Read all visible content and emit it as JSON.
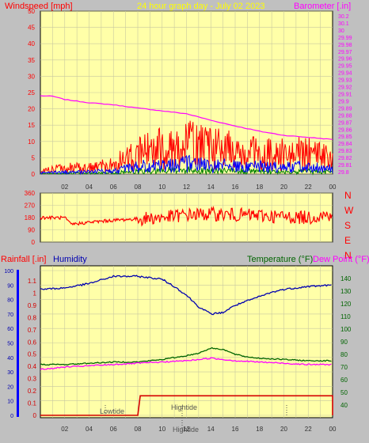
{
  "header": {
    "wind_label": "Windspeed [mph]",
    "title": "24 hour graph day - July 02 2023",
    "baro_label": "Barometer [.in]"
  },
  "colors": {
    "background": "#c0c0c0",
    "plot": "#ffffa8",
    "wind": "#ff0000",
    "gust_band": "#0000ff",
    "wind_green": "#008000",
    "barometer": "#ff00ff",
    "title": "#ffff00",
    "humidity": "#0000b0",
    "temperature": "#006400",
    "dewpoint": "#ff00ff",
    "rain": "#d40000"
  },
  "compass": [
    "N",
    "W",
    "S",
    "E",
    "N"
  ],
  "lower": {
    "rain_label": "Rainfall [.in]",
    "humidity_label": "Humidity",
    "temp_label": "Temperature (°F)",
    "dew_label": "Dew Point (°F)",
    "lowtide": "Lowtide",
    "hightide": "Hightide",
    "hightide_bottom": "Hightide"
  },
  "x_ticks": [
    "02",
    "04",
    "06",
    "08",
    "10",
    "12",
    "14",
    "16",
    "18",
    "20",
    "22",
    "00"
  ],
  "chart_data": [
    {
      "type": "line",
      "title": "24 hour graph day - July 02 2023",
      "x_unit": "hours",
      "x_range": [
        0,
        24
      ],
      "y_left": {
        "label": "Windspeed [mph]",
        "range": [
          0,
          50
        ],
        "ticks": [
          0,
          5,
          10,
          15,
          20,
          25,
          30,
          35,
          40,
          45,
          50
        ]
      },
      "y_right": {
        "label": "Barometer [.in]",
        "range": [
          29.8,
          30.2
        ],
        "ticks": [
          "29.8",
          "29.81",
          "29.82",
          "29.83",
          "29.84",
          "29.85",
          "29.86",
          "29.87",
          "29.88",
          "29.89",
          "29.9",
          "29.91",
          "29.92",
          "29.93",
          "29.94",
          "29.95",
          "29.96",
          "29.97",
          "29.98",
          "29.99",
          "30",
          "30.1",
          "30.2"
        ]
      },
      "series": [
        {
          "name": "Windspeed [mph]",
          "x": [
            0,
            2,
            4,
            6,
            7.5,
            9,
            10.5,
            12,
            13.5,
            15,
            16.5,
            18,
            19.5,
            21,
            22.5,
            24
          ],
          "y": [
            1,
            2,
            2,
            3,
            6,
            8,
            9,
            10,
            9,
            8,
            7,
            7,
            6,
            7,
            6,
            5
          ]
        },
        {
          "name": "Barometer [.in]",
          "x": [
            0,
            1,
            2,
            4,
            6,
            8,
            10,
            12,
            14,
            16,
            18,
            20,
            22,
            24
          ],
          "y": [
            29.992,
            29.991,
            29.983,
            29.975,
            29.97,
            29.962,
            29.955,
            29.948,
            29.932,
            29.918,
            29.905,
            29.895,
            29.89,
            29.885
          ]
        }
      ]
    },
    {
      "type": "line",
      "x_unit": "hours",
      "x_range": [
        0,
        24
      ],
      "y_left": {
        "range": [
          0,
          360
        ],
        "ticks": [
          0,
          90,
          180,
          270,
          360
        ]
      },
      "y_right": {
        "labels": [
          "N",
          "W",
          "S",
          "E",
          "N"
        ]
      },
      "series": [
        {
          "name": "Wind direction",
          "x": [
            0,
            2,
            2.5,
            4,
            6,
            8,
            10,
            12,
            14,
            16,
            18,
            20,
            22,
            24
          ],
          "y": [
            180,
            178,
            130,
            145,
            160,
            170,
            180,
            200,
            205,
            200,
            195,
            185,
            180,
            205
          ]
        }
      ]
    },
    {
      "type": "line",
      "x_unit": "hours",
      "x_range": [
        0,
        24
      ],
      "y_left": {
        "label": "Rainfall [.in]",
        "range": [
          0,
          1.1
        ],
        "ticks": [
          "0",
          "0.1",
          "0.2",
          "0.3",
          "0.4",
          "0.5",
          "0.6",
          "0.7",
          "0.8",
          "0.9",
          "1",
          "1.1"
        ]
      },
      "y_humidity": {
        "label": "Humidity",
        "range": [
          0,
          100
        ],
        "ticks": [
          0,
          10,
          20,
          30,
          40,
          50,
          60,
          70,
          80,
          90,
          100
        ]
      },
      "y_right": {
        "label": "Temperature (°F)",
        "range": [
          30,
          140
        ],
        "ticks": [
          40,
          50,
          60,
          70,
          80,
          90,
          100,
          110,
          120,
          130,
          140
        ]
      },
      "series": [
        {
          "name": "Humidity",
          "x": [
            0,
            2,
            4,
            6,
            8,
            10,
            11,
            12,
            13,
            14,
            15,
            16,
            17,
            18,
            19,
            20,
            22,
            24
          ],
          "y": [
            87,
            88,
            91,
            96,
            96,
            94,
            89,
            83,
            75,
            70,
            71,
            76,
            79,
            82,
            85,
            87,
            89,
            90
          ]
        },
        {
          "name": "Temperature (°F)",
          "x": [
            0,
            2,
            4,
            6,
            8,
            10,
            12,
            13,
            14,
            15,
            16,
            17,
            18,
            20,
            22,
            24
          ],
          "y": [
            72,
            72,
            73,
            74,
            74,
            76,
            79,
            81,
            85,
            84,
            80,
            78,
            77,
            76,
            75,
            75
          ]
        },
        {
          "name": "Dew Point (°F)",
          "x": [
            0,
            2,
            4,
            6,
            8,
            10,
            12,
            13,
            14,
            15,
            16,
            18,
            20,
            22,
            24
          ],
          "y": [
            68,
            70,
            71,
            72,
            73,
            74,
            75,
            76,
            77,
            76,
            75,
            74,
            73,
            72,
            72
          ]
        },
        {
          "name": "Rainfall [.in]",
          "x": [
            0,
            8,
            8.2,
            8.4,
            24
          ],
          "y": [
            0,
            0,
            0.16,
            0.16,
            0.16
          ]
        }
      ]
    }
  ]
}
